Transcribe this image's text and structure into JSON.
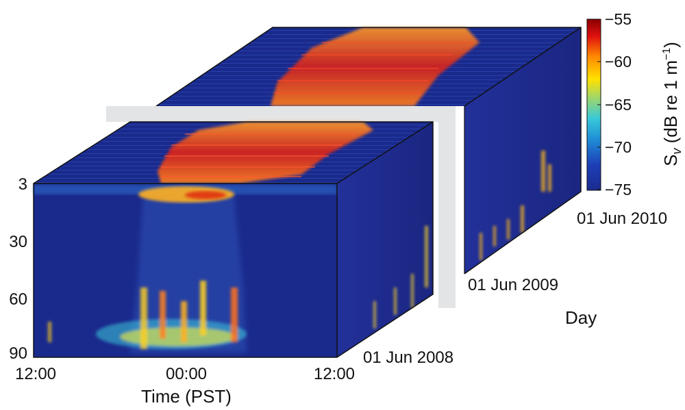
{
  "chart_data": {
    "type": "heatmap",
    "description_type": "3d echogram block",
    "x_axis": {
      "label": "Time (PST)",
      "ticks": [
        "12:00",
        "00:00",
        "12:00"
      ]
    },
    "y_axis": {
      "ticks": [
        "3",
        "30",
        "60",
        "90"
      ],
      "range": [
        3,
        90
      ],
      "inverted": true
    },
    "z_axis": {
      "label": "Day",
      "ticks": [
        "01 Jun 2008",
        "01 Jun 2009",
        "01 Jun 2010"
      ]
    },
    "colorbar": {
      "label_main": "S",
      "label_sub": "v",
      "label_rest": " (dB re 1 m",
      "label_sup": "−1",
      "label_end": ")",
      "ticks": [
        "−55",
        "−60",
        "−65",
        "−70",
        "−75"
      ],
      "range": [
        -75,
        -55
      ],
      "colormap": [
        "#00008f",
        "#0000ff",
        "#0080ff",
        "#00ffff",
        "#80ff80",
        "#ffff00",
        "#ff8000",
        "#ff0000",
        "#800000"
      ]
    },
    "colors": {
      "background_navy": "#1a2a8c",
      "highlight_panel": "#e3e4e6"
    },
    "grid": false
  }
}
